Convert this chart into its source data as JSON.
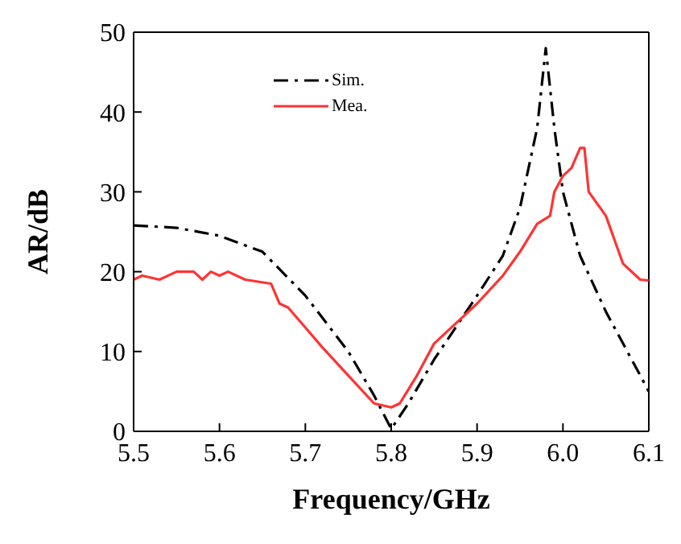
{
  "chart_data": {
    "type": "line",
    "xlabel": "Frequency/GHz",
    "ylabel": "AR/dB",
    "xlim": [
      5.5,
      6.1
    ],
    "xticks": [
      5.5,
      5.6,
      5.7,
      5.8,
      5.9,
      {
        "value": 6,
        "label": "6.0"
      },
      6.1
    ],
    "ylim": [
      0,
      50
    ],
    "yticks": [
      0,
      10,
      20,
      30,
      40,
      50
    ],
    "legend": "top",
    "grid": false,
    "marker": "none",
    "series": [
      {
        "name": "Sim.",
        "color": "#000000",
        "line_style": "dashdot",
        "x": [
          5.5,
          5.55,
          5.6,
          5.65,
          5.7,
          5.75,
          5.78,
          5.8,
          5.82,
          5.85,
          5.9,
          5.93,
          5.95,
          5.97,
          5.98,
          5.99,
          6.0,
          6.02,
          6.05,
          6.08,
          6.1
        ],
        "values": [
          25.8,
          25.5,
          24.5,
          22.5,
          17,
          10,
          4.5,
          0.3,
          3.5,
          9,
          17,
          22,
          28,
          38,
          48,
          38,
          30,
          22,
          15,
          9,
          5
        ]
      },
      {
        "name": "Mea.",
        "color": "#ff3333",
        "line_style": "solid",
        "x": [
          5.5,
          5.51,
          5.53,
          5.55,
          5.57,
          5.58,
          5.59,
          5.6,
          5.61,
          5.63,
          5.66,
          5.67,
          5.68,
          5.7,
          5.72,
          5.75,
          5.78,
          5.8,
          5.81,
          5.83,
          5.85,
          5.88,
          5.9,
          5.93,
          5.95,
          5.97,
          5.985,
          5.99,
          6.0,
          6.01,
          6.02,
          6.025,
          6.03,
          6.05,
          6.07,
          6.09,
          6.1
        ],
        "values": [
          19,
          19.5,
          19,
          20,
          20,
          19,
          20,
          19.5,
          20,
          19,
          18.5,
          16,
          15.5,
          13,
          10.5,
          7,
          3.5,
          3,
          3.5,
          7,
          11,
          14,
          16,
          19.5,
          22.5,
          26,
          27,
          30,
          32,
          33,
          35.5,
          35.5,
          30,
          27,
          21,
          19,
          18.9
        ]
      }
    ]
  }
}
